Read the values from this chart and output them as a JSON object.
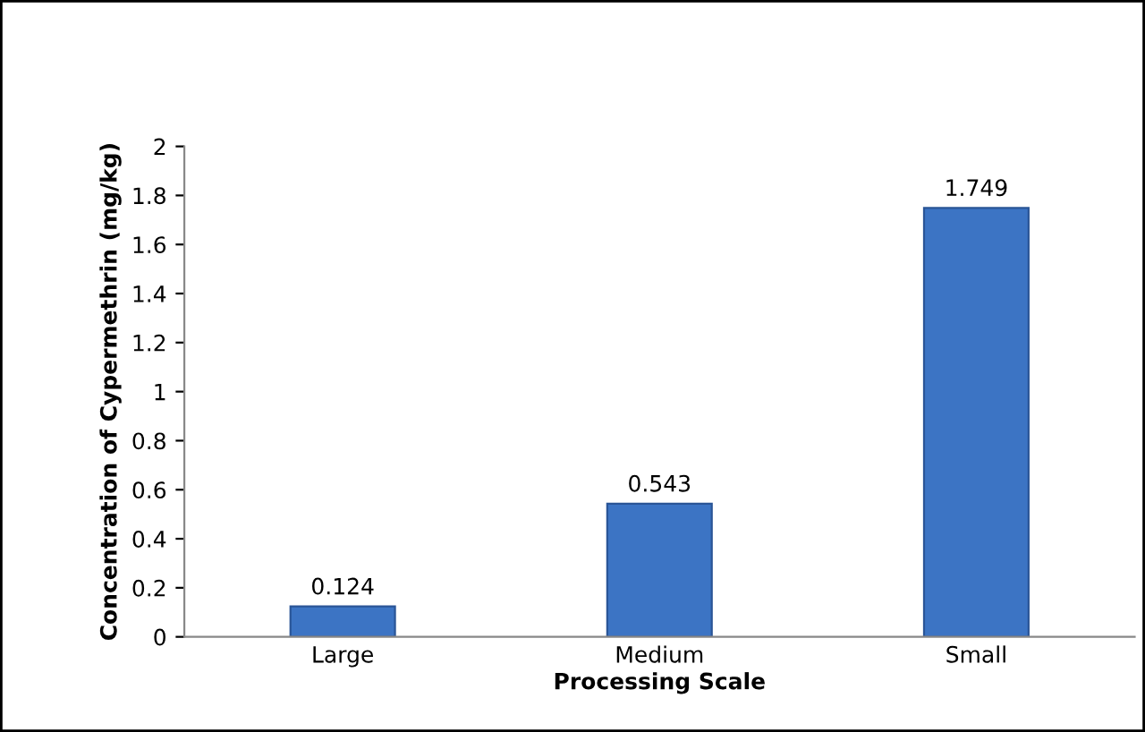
{
  "chart_data": {
    "type": "bar",
    "xlabel": "Processing Scale",
    "ylabel": "Concentration of Cypermethrin (mg/kg)",
    "categories": [
      "Large",
      "Medium",
      "Small"
    ],
    "values": [
      0.124,
      0.543,
      1.749
    ],
    "color": "#3c74c4",
    "ylim": [
      0,
      2
    ],
    "yticks": [
      0,
      0.2,
      0.4,
      0.6,
      0.8,
      1,
      1.2,
      1.4,
      1.6,
      1.8,
      2
    ],
    "data_labels": true,
    "grid": false,
    "legend": false
  }
}
